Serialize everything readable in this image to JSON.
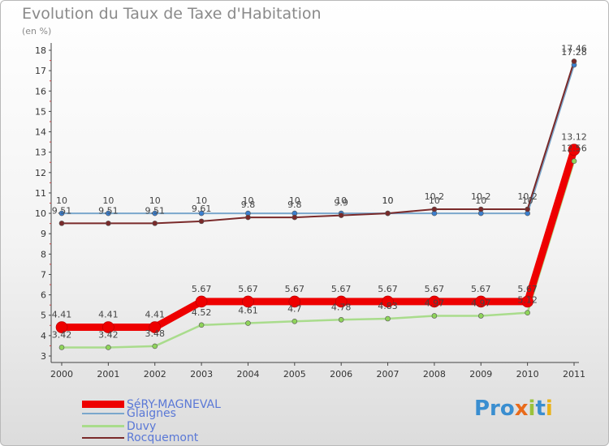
{
  "title": "Evolution du Taux de Taxe d'Habitation",
  "unit_label": "(en %)",
  "logo_text": "Proxiti",
  "chart_data": {
    "type": "line",
    "title": "Evolution du Taux de Taxe d'Habitation",
    "ylabel": "(en %)",
    "xlabel": "",
    "categories": [
      "2000",
      "2001",
      "2002",
      "2003",
      "2004",
      "2005",
      "2006",
      "2007",
      "2008",
      "2009",
      "2010",
      "2011"
    ],
    "ylim": [
      3,
      18
    ],
    "yticks": [
      3,
      4,
      5,
      6,
      7,
      8,
      9,
      10,
      11,
      12,
      13,
      14,
      15,
      16,
      17,
      18
    ],
    "grid": false,
    "legend_position": "bottom-left",
    "series": [
      {
        "name": "SéRY-MAGNEVAL",
        "color": "#ee0000",
        "values": [
          4.41,
          4.41,
          4.41,
          5.67,
          5.67,
          5.67,
          5.67,
          5.67,
          5.67,
          5.67,
          5.67,
          13.12
        ],
        "labels": [
          "4.41",
          "4.41",
          "4.41",
          "5.67",
          "5.67",
          "5.67",
          "5.67",
          "5.67",
          "5.67",
          "5.67",
          "5.67",
          "13.12"
        ]
      },
      {
        "name": "Glaignes",
        "color": "#7aa7cc",
        "values": [
          10,
          10,
          10,
          10,
          10,
          10,
          10,
          10,
          10,
          10,
          10,
          17.28
        ],
        "labels": [
          "10",
          "10",
          "10",
          "10",
          "10",
          "10",
          "10",
          "10",
          "10",
          "10",
          "10",
          "17.28"
        ]
      },
      {
        "name": "Duvy",
        "color": "#a9dc8c",
        "values": [
          3.42,
          3.42,
          3.48,
          4.52,
          4.61,
          4.7,
          4.78,
          4.83,
          4.97,
          4.97,
          5.12,
          12.56
        ],
        "labels": [
          "3.42",
          "3.42",
          "3.48",
          "4.52",
          "4.61",
          "4.7",
          "4.78",
          "4.83",
          "4.97",
          "4.97",
          "5.12",
          "12.56"
        ]
      },
      {
        "name": "Rocquemont",
        "color": "#7a2a2a",
        "values": [
          9.51,
          9.51,
          9.51,
          9.61,
          9.8,
          9.8,
          9.9,
          10,
          10.2,
          10.2,
          10.2,
          17.46
        ],
        "labels": [
          "9.51",
          "9.51",
          "9.51",
          "9.61",
          "9.8",
          "9.8",
          "9.9",
          "10",
          "10.2",
          "10.2",
          "10.2",
          "17.46"
        ]
      }
    ]
  }
}
